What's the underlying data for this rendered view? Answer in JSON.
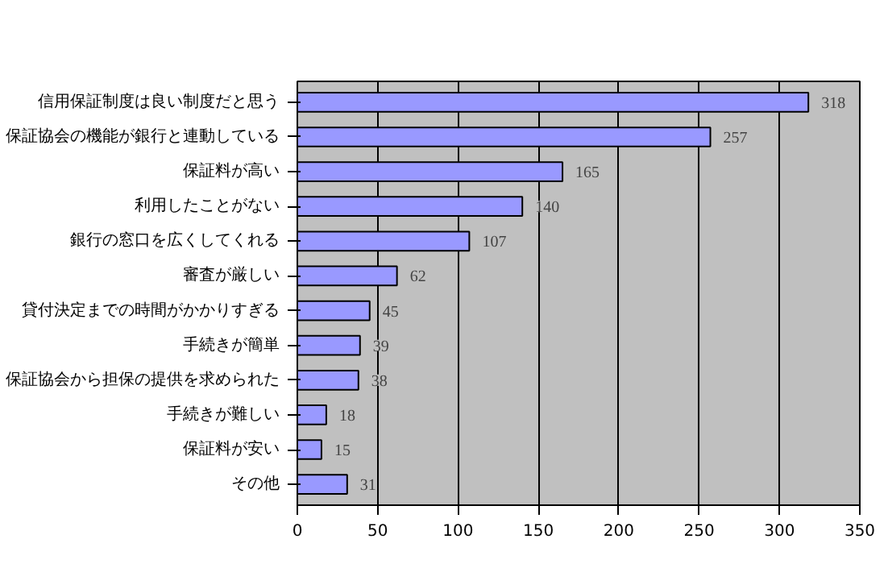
{
  "chart_data": {
    "type": "bar",
    "orientation": "horizontal",
    "categories": [
      "信用保証制度は良い制度だと思う",
      "保証協会の機能が銀行と連動している",
      "保証料が高い",
      "利用したことがない",
      "銀行の窓口を広くしてくれる",
      "審査が厳しい",
      "貸付決定までの時間がかかりすぎる",
      "手続きが簡単",
      "保証協会から担保の提供を求められた",
      "手続きが難しい",
      "保証料が安い",
      "その他"
    ],
    "values": [
      318,
      257,
      165,
      140,
      107,
      62,
      45,
      39,
      38,
      18,
      15,
      31
    ],
    "color": "#9999ff",
    "data_labels": true,
    "grid": "x",
    "xlim": [
      0,
      350
    ],
    "xticks": [
      0,
      50,
      100,
      150,
      200,
      250,
      300,
      350
    ]
  }
}
